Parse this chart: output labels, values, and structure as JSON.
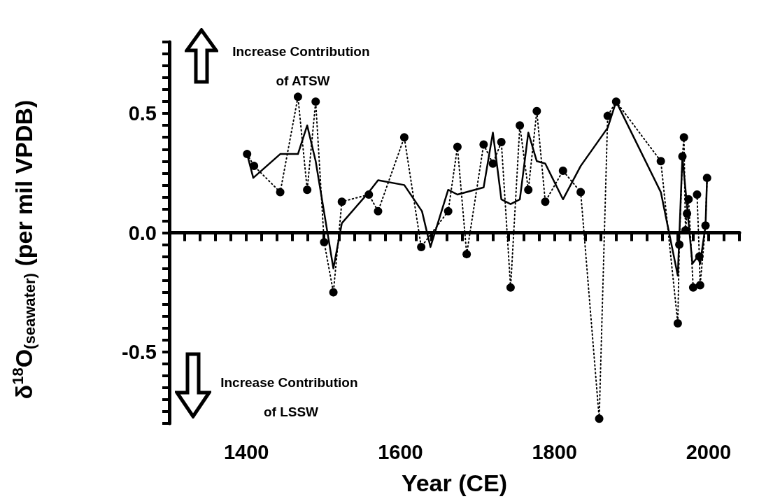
{
  "chart_data": {
    "type": "line",
    "xlabel": "Year (CE)",
    "ylabel": "δ$^{18}$O$_{(seawater)}$ (per mil VPDB)",
    "annotations": [
      "Increase Contribution of ATSW",
      "Increase Contribution of LSSW"
    ],
    "xlim": [
      1300,
      2040
    ],
    "ylim": [
      -0.8,
      0.8
    ],
    "xticks": [
      {
        "value": 1300,
        "label": null
      },
      {
        "value": 1320,
        "label": null
      },
      {
        "value": 1340,
        "label": null
      },
      {
        "value": 1360,
        "label": null
      },
      {
        "value": 1380,
        "label": null
      },
      1400,
      {
        "value": 1420,
        "label": null
      },
      {
        "value": 1440,
        "label": null
      },
      {
        "value": 1460,
        "label": null
      },
      {
        "value": 1480,
        "label": null
      },
      {
        "value": 1500,
        "label": null
      },
      {
        "value": 1520,
        "label": null
      },
      {
        "value": 1540,
        "label": null
      },
      {
        "value": 1560,
        "label": null
      },
      {
        "value": 1580,
        "label": null
      },
      1600,
      {
        "value": 1620,
        "label": null
      },
      {
        "value": 1640,
        "label": null
      },
      {
        "value": 1660,
        "label": null
      },
      {
        "value": 1680,
        "label": null
      },
      {
        "value": 1700,
        "label": null
      },
      {
        "value": 1720,
        "label": null
      },
      {
        "value": 1740,
        "label": null
      },
      {
        "value": 1760,
        "label": null
      },
      {
        "value": 1780,
        "label": null
      },
      1800,
      {
        "value": 1820,
        "label": null
      },
      {
        "value": 1840,
        "label": null
      },
      {
        "value": 1860,
        "label": null
      },
      {
        "value": 1880,
        "label": null
      },
      {
        "value": 1900,
        "label": null
      },
      {
        "value": 1920,
        "label": null
      },
      {
        "value": 1940,
        "label": null
      },
      {
        "value": 1960,
        "label": null
      },
      {
        "value": 1980,
        "label": null
      },
      2000,
      {
        "value": 2020,
        "label": null
      },
      {
        "value": 2040,
        "label": null
      }
    ],
    "yticks": [
      {
        "value": -0.8,
        "label": null
      },
      {
        "value": -0.75,
        "label": null
      },
      {
        "value": -0.7,
        "label": null
      },
      {
        "value": -0.65,
        "label": null
      },
      {
        "value": -0.6,
        "label": null
      },
      {
        "value": -0.55,
        "label": null
      },
      -0.5,
      {
        "value": -0.45,
        "label": null
      },
      {
        "value": -0.4,
        "label": null
      },
      {
        "value": -0.35,
        "label": null
      },
      {
        "value": -0.3,
        "label": null
      },
      {
        "value": -0.25,
        "label": null
      },
      {
        "value": -0.2,
        "label": null
      },
      {
        "value": -0.15,
        "label": null
      },
      {
        "value": -0.1,
        "label": null
      },
      {
        "value": -0.05,
        "label": null
      },
      {
        "value": 0,
        "label": "0.0"
      },
      {
        "value": 0.05,
        "label": null
      },
      {
        "value": 0.1,
        "label": null
      },
      {
        "value": 0.15,
        "label": null
      },
      {
        "value": 0.2,
        "label": null
      },
      {
        "value": 0.25,
        "label": null
      },
      {
        "value": 0.3,
        "label": null
      },
      {
        "value": 0.35,
        "label": null
      },
      {
        "value": 0.4,
        "label": null
      },
      {
        "value": 0.45,
        "label": null
      },
      0.5,
      {
        "value": 0.55,
        "label": null
      },
      {
        "value": 0.6,
        "label": null
      },
      {
        "value": 0.65,
        "label": null
      },
      {
        "value": 0.7,
        "label": null
      },
      {
        "value": 0.75,
        "label": null
      },
      {
        "value": 0.8,
        "label": null
      }
    ],
    "series": [
      {
        "color": "#000000",
        "marker": "circle",
        "line_style": "dotted",
        "x": [
          1401,
          1410,
          1444,
          1467,
          1479,
          1490,
          1501,
          1513,
          1524,
          1559,
          1571,
          1605,
          1627,
          1662,
          1674,
          1686,
          1708,
          1720,
          1731,
          1743,
          1755,
          1766,
          1777,
          1788,
          1811,
          1834,
          1858,
          1869,
          1880,
          1938,
          1960,
          1962,
          1966,
          1968,
          1970,
          1972,
          1974,
          1980,
          1983,
          1985,
          1988,
          1989,
          1996,
          1998
        ],
        "values": [
          0.33,
          0.28,
          0.17,
          0.57,
          0.18,
          0.55,
          -0.04,
          -0.25,
          0.13,
          0.16,
          0.09,
          0.4,
          -0.06,
          0.09,
          0.36,
          -0.09,
          0.37,
          0.29,
          0.38,
          -0.23,
          0.45,
          0.18,
          0.51,
          0.13,
          0.26,
          0.17,
          -0.78,
          0.49,
          0.55,
          0.3,
          -0.38,
          -0.05,
          0.32,
          0.4,
          0.01,
          0.08,
          0.14,
          -0.23,
          null,
          0.16,
          -0.1,
          -0.22,
          0.03,
          0.23
        ]
      },
      {
        "color": "#000000",
        "marker": "none",
        "line_style": "solid",
        "x": [
          1401,
          1409,
          1444,
          1467,
          1479,
          1490,
          1513,
          1524,
          1559,
          1571,
          1605,
          1628,
          1639,
          1662,
          1674,
          1708,
          1720,
          1731,
          1743,
          1755,
          1766,
          1777,
          1788,
          1811,
          1834,
          1869,
          1880,
          1938,
          1960,
          1966,
          1979,
          1986,
          1989,
          1996,
          1998
        ],
        "values": [
          0.33,
          0.23,
          0.33,
          0.33,
          0.45,
          0.3,
          -0.15,
          0.04,
          0.17,
          0.22,
          0.2,
          0.09,
          -0.06,
          0.18,
          0.16,
          0.19,
          0.42,
          0.14,
          0.12,
          0.14,
          0.42,
          0.3,
          0.29,
          0.14,
          0.28,
          0.44,
          0.55,
          0.17,
          -0.18,
          0.32,
          -0.13,
          -0.1,
          -0.13,
          0.03,
          0.23
        ]
      }
    ]
  }
}
